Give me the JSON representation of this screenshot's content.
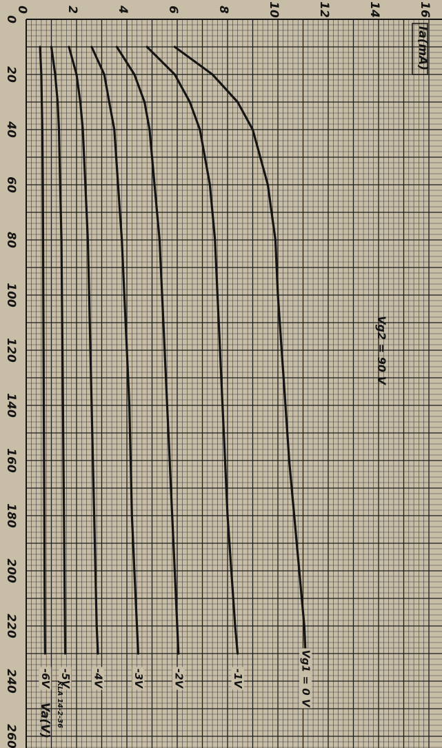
{
  "chart_data": {
    "type": "line",
    "orientation": "rotated-90",
    "xlabel": "Va(V)",
    "ylabel": "Ia(mA)",
    "xlim": [
      0,
      270
    ],
    "ylim": [
      0,
      16
    ],
    "x_ticks": [
      0,
      20,
      40,
      60,
      80,
      100,
      120,
      140,
      160,
      180,
      200,
      220,
      240,
      260
    ],
    "y_ticks": [
      0,
      2,
      4,
      6,
      8,
      10,
      12,
      14,
      16
    ],
    "grid": true,
    "annotation": "Vg2 = 90 V",
    "stamp": "KLA 14-2-36",
    "series": [
      {
        "name": "Vg1 = 0 V",
        "x": [
          10,
          20,
          30,
          40,
          60,
          80,
          100,
          120,
          140,
          160,
          180,
          200,
          220,
          230
        ],
        "y": [
          5.9,
          7.4,
          8.4,
          9.0,
          9.6,
          9.9,
          10.0,
          10.15,
          10.3,
          10.45,
          10.65,
          10.85,
          11.05,
          11.1
        ]
      },
      {
        "name": "-1V",
        "x": [
          10,
          20,
          30,
          40,
          60,
          80,
          100,
          120,
          140,
          160,
          180,
          200,
          220,
          230
        ],
        "y": [
          4.8,
          5.9,
          6.5,
          6.9,
          7.3,
          7.5,
          7.6,
          7.7,
          7.8,
          7.9,
          8.0,
          8.15,
          8.3,
          8.4
        ]
      },
      {
        "name": "-2V",
        "x": [
          10,
          20,
          30,
          40,
          60,
          80,
          100,
          120,
          140,
          160,
          180,
          200,
          220,
          230
        ],
        "y": [
          3.6,
          4.3,
          4.7,
          4.9,
          5.1,
          5.3,
          5.4,
          5.5,
          5.6,
          5.7,
          5.8,
          5.9,
          6.0,
          6.05
        ]
      },
      {
        "name": "-3V",
        "x": [
          10,
          20,
          30,
          40,
          60,
          80,
          100,
          120,
          140,
          160,
          180,
          200,
          220,
          230
        ],
        "y": [
          2.6,
          3.1,
          3.3,
          3.5,
          3.65,
          3.8,
          3.9,
          4.0,
          4.1,
          4.15,
          4.2,
          4.3,
          4.4,
          4.45
        ]
      },
      {
        "name": "-4V",
        "x": [
          10,
          20,
          30,
          40,
          60,
          80,
          100,
          120,
          140,
          160,
          180,
          200,
          220,
          230
        ],
        "y": [
          1.7,
          2.0,
          2.15,
          2.25,
          2.35,
          2.45,
          2.5,
          2.55,
          2.6,
          2.65,
          2.7,
          2.75,
          2.8,
          2.85
        ]
      },
      {
        "name": "-5V",
        "x": [
          10,
          20,
          30,
          40,
          60,
          80,
          100,
          120,
          140,
          160,
          180,
          200,
          220,
          230
        ],
        "y": [
          1.0,
          1.15,
          1.25,
          1.3,
          1.35,
          1.4,
          1.42,
          1.44,
          1.46,
          1.48,
          1.5,
          1.52,
          1.54,
          1.55
        ]
      },
      {
        "name": "-6V",
        "x": [
          10,
          20,
          30,
          40,
          60,
          80,
          100,
          120,
          140,
          160,
          180,
          200,
          220,
          230
        ],
        "y": [
          0.55,
          0.6,
          0.62,
          0.64,
          0.66,
          0.67,
          0.68,
          0.69,
          0.7,
          0.71,
          0.72,
          0.73,
          0.74,
          0.75
        ]
      }
    ]
  },
  "colors": {
    "paper": "#c8bda6",
    "grid_minor": "#3a3a3a",
    "grid_major": "#1a1a1a",
    "ink": "#141414"
  }
}
